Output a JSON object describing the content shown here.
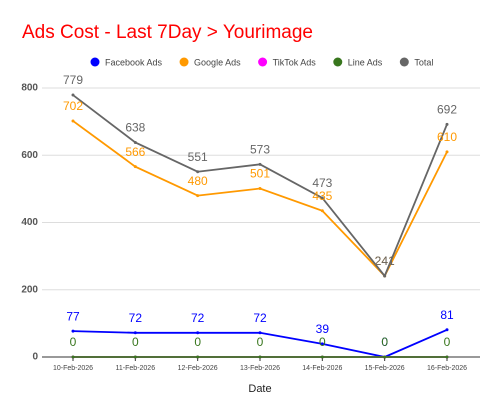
{
  "chart_data": {
    "type": "line",
    "title": "Ads Cost - Last 7Day > Yourimage",
    "x_label": "Date",
    "categories": [
      "10-Feb-2026",
      "11-Feb-2026",
      "12-Feb-2026",
      "13-Feb-2026",
      "14-Feb-2026",
      "15-Feb-2026",
      "16-Feb-2026"
    ],
    "series": [
      {
        "name": "Facebook Ads",
        "color": "#0000ff",
        "values": [
          77,
          72,
          72,
          72,
          39,
          0,
          81
        ],
        "show_labels": true
      },
      {
        "name": "Google Ads",
        "color": "#ff9900",
        "values": [
          702,
          566,
          480,
          501,
          435,
          241,
          610
        ],
        "show_labels": true
      },
      {
        "name": "TikTok Ads",
        "color": "#ff00ff",
        "values": [
          0,
          0,
          0,
          0,
          0,
          0,
          0
        ],
        "show_labels": false
      },
      {
        "name": "Line Ads",
        "color": "#38761d",
        "values": [
          0,
          0,
          0,
          0,
          0,
          0,
          0
        ],
        "show_labels": true
      },
      {
        "name": "Total",
        "color": "#666666",
        "values": [
          779,
          638,
          551,
          573,
          473,
          241,
          692
        ],
        "show_labels": true
      }
    ],
    "ylim": [
      0,
      800
    ],
    "yticks": [
      0,
      200,
      400,
      600,
      800
    ],
    "grid": true,
    "legend": "top"
  }
}
